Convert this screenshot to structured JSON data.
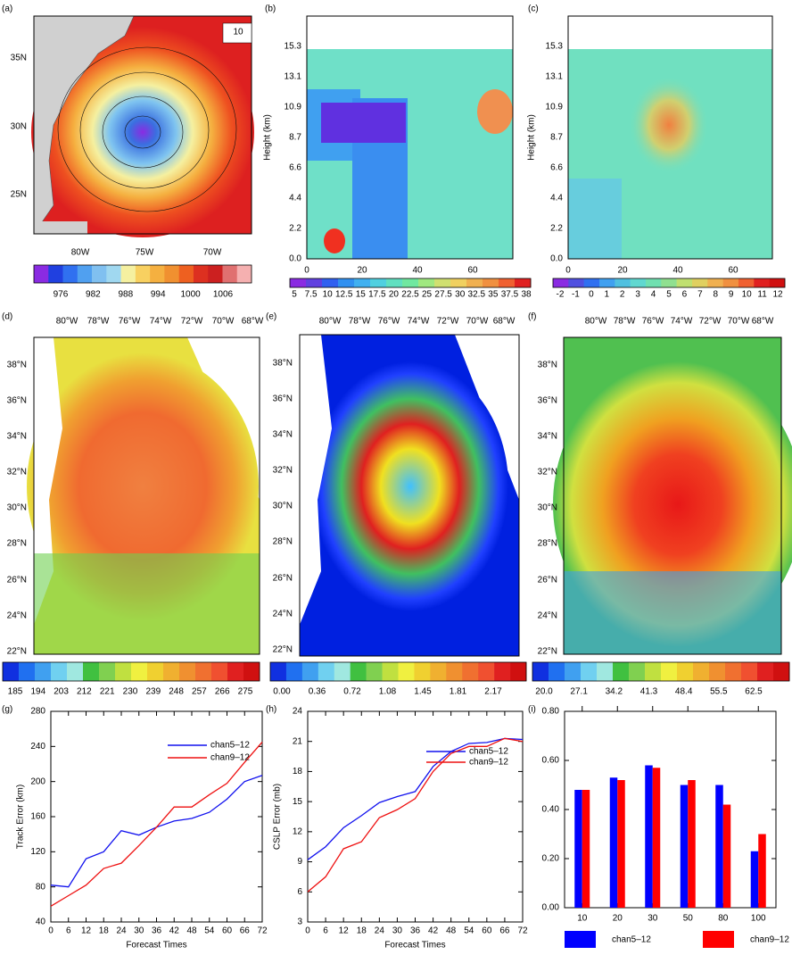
{
  "panels": [
    {
      "label": "(a)",
      "xticks": [
        "80W",
        "75W",
        "70W"
      ],
      "yticks": [
        "25N",
        "30N",
        "35N"
      ],
      "vector_ref": "10",
      "colorbar": [
        "976",
        "982",
        "988",
        "994",
        "1000",
        "1006"
      ]
    },
    {
      "label": "(b)",
      "ylabel": "Height (km)",
      "xticks": [
        "0",
        "20",
        "40",
        "60"
      ],
      "yticks": [
        "0.0",
        "2.2",
        "4.4",
        "6.6",
        "8.7",
        "10.9",
        "13.1",
        "15.3"
      ],
      "colorbar": [
        "5",
        "7.5",
        "10",
        "12.5",
        "15",
        "17.5",
        "20",
        "22.5",
        "25",
        "27.5",
        "30",
        "32.5",
        "35",
        "37.5",
        "38"
      ]
    },
    {
      "label": "(c)",
      "ylabel": "Height (km)",
      "xticks": [
        "0",
        "20",
        "40",
        "60"
      ],
      "yticks": [
        "0.0",
        "2.2",
        "4.4",
        "6.6",
        "8.7",
        "10.9",
        "13.1",
        "15.3"
      ],
      "colorbar": [
        "-2",
        "-1",
        "0",
        "1",
        "2",
        "3",
        "4",
        "5",
        "6",
        "7",
        "8",
        "9",
        "10",
        "11",
        "12"
      ]
    },
    {
      "label": "(d)",
      "xticks": [
        "80°W",
        "78°W",
        "76°W",
        "74°W",
        "72°W",
        "70°W",
        "68°W"
      ],
      "yticks": [
        "22°N",
        "24°N",
        "26°N",
        "28°N",
        "30°N",
        "32°N",
        "34°N",
        "36°N",
        "38°N"
      ],
      "colorbar": [
        "185",
        "194",
        "203",
        "212",
        "221",
        "230",
        "239",
        "248",
        "257",
        "266",
        "275"
      ]
    },
    {
      "label": "(e)",
      "xticks": [
        "80°W",
        "78°W",
        "76°W",
        "74°W",
        "72°W",
        "70°W",
        "68°W"
      ],
      "yticks": [
        "22°N",
        "24°N",
        "26°N",
        "28°N",
        "30°N",
        "32°N",
        "34°N",
        "36°N",
        "38°N"
      ],
      "colorbar": [
        "0.00",
        "0.36",
        "0.72",
        "1.08",
        "1.45",
        "1.81",
        "2.17"
      ]
    },
    {
      "label": "(f)",
      "xticks": [
        "80°W",
        "78°W",
        "76°W",
        "74°W",
        "72°W",
        "70°W",
        "68°W"
      ],
      "yticks": [
        "22°N",
        "24°N",
        "26°N",
        "28°N",
        "30°N",
        "32°N",
        "34°N",
        "36°N",
        "38°N"
      ],
      "colorbar": [
        "20.0",
        "27.1",
        "34.2",
        "41.3",
        "48.4",
        "55.5",
        "62.5"
      ]
    }
  ],
  "chart_data": [
    {
      "type": "line",
      "panel_label": "(g)",
      "x_label": "Forecast Times",
      "y_label": "Track Error (km)",
      "x": [
        0,
        6,
        12,
        18,
        24,
        30,
        36,
        42,
        48,
        54,
        60,
        66,
        72
      ],
      "xlim": [
        0,
        72
      ],
      "xticks": [
        0,
        6,
        12,
        18,
        24,
        30,
        36,
        42,
        48,
        54,
        60,
        66,
        72
      ],
      "ylim": [
        40,
        280
      ],
      "yticks": [
        40,
        80,
        120,
        160,
        200,
        240,
        280
      ],
      "series": [
        {
          "name": "chan5–12",
          "color": "#1010ee",
          "values": [
            82,
            80,
            112,
            120,
            144,
            139,
            148,
            155,
            158,
            165,
            180,
            200,
            207
          ]
        },
        {
          "name": "chan9–12",
          "color": "#ee1010",
          "values": [
            58,
            70,
            82,
            101,
            107,
            127,
            148,
            171,
            171,
            185,
            198,
            222,
            245
          ]
        }
      ]
    },
    {
      "type": "line",
      "panel_label": "(h)",
      "x_label": "Forecast Times",
      "y_label": "CSLP Error (mb)",
      "x": [
        0,
        6,
        12,
        18,
        24,
        30,
        36,
        42,
        48,
        54,
        60,
        66,
        72
      ],
      "xlim": [
        0,
        72
      ],
      "xticks": [
        0,
        6,
        12,
        18,
        24,
        30,
        36,
        42,
        48,
        54,
        60,
        66,
        72
      ],
      "ylim": [
        3,
        24
      ],
      "yticks": [
        3,
        6,
        9,
        12,
        15,
        18,
        21,
        24
      ],
      "series": [
        {
          "name": "chan5–12",
          "color": "#1010ee",
          "values": [
            9.2,
            10.5,
            12.4,
            13.6,
            14.9,
            15.5,
            16,
            18.5,
            20,
            20.8,
            20.9,
            21.3,
            21.2
          ]
        },
        {
          "name": "chan9–12",
          "color": "#ee1010",
          "values": [
            6,
            7.5,
            10.3,
            11,
            13.4,
            14.2,
            15.3,
            18,
            19.8,
            20.5,
            20.5,
            21.3,
            21
          ]
        }
      ]
    },
    {
      "type": "bar",
      "panel_label": "(i)",
      "categories": [
        "10",
        "20",
        "30",
        "50",
        "80",
        "100"
      ],
      "ylim": [
        0,
        0.8
      ],
      "yticks": [
        {
          "value": 0,
          "label": "0.00"
        },
        {
          "value": 0.2,
          "label": "0.20"
        },
        {
          "value": 0.4,
          "label": "0.40"
        },
        {
          "value": 0.6,
          "label": "0.60"
        },
        {
          "value": 0.8,
          "label": "0.80"
        }
      ],
      "series": [
        {
          "name": "chan5–12",
          "color": "#0000ff",
          "values": [
            0.48,
            0.53,
            0.58,
            0.5,
            0.5,
            0.23
          ]
        },
        {
          "name": "chan9–12",
          "color": "#ff0000",
          "values": [
            0.48,
            0.52,
            0.57,
            0.52,
            0.42,
            0.3
          ]
        }
      ]
    }
  ]
}
